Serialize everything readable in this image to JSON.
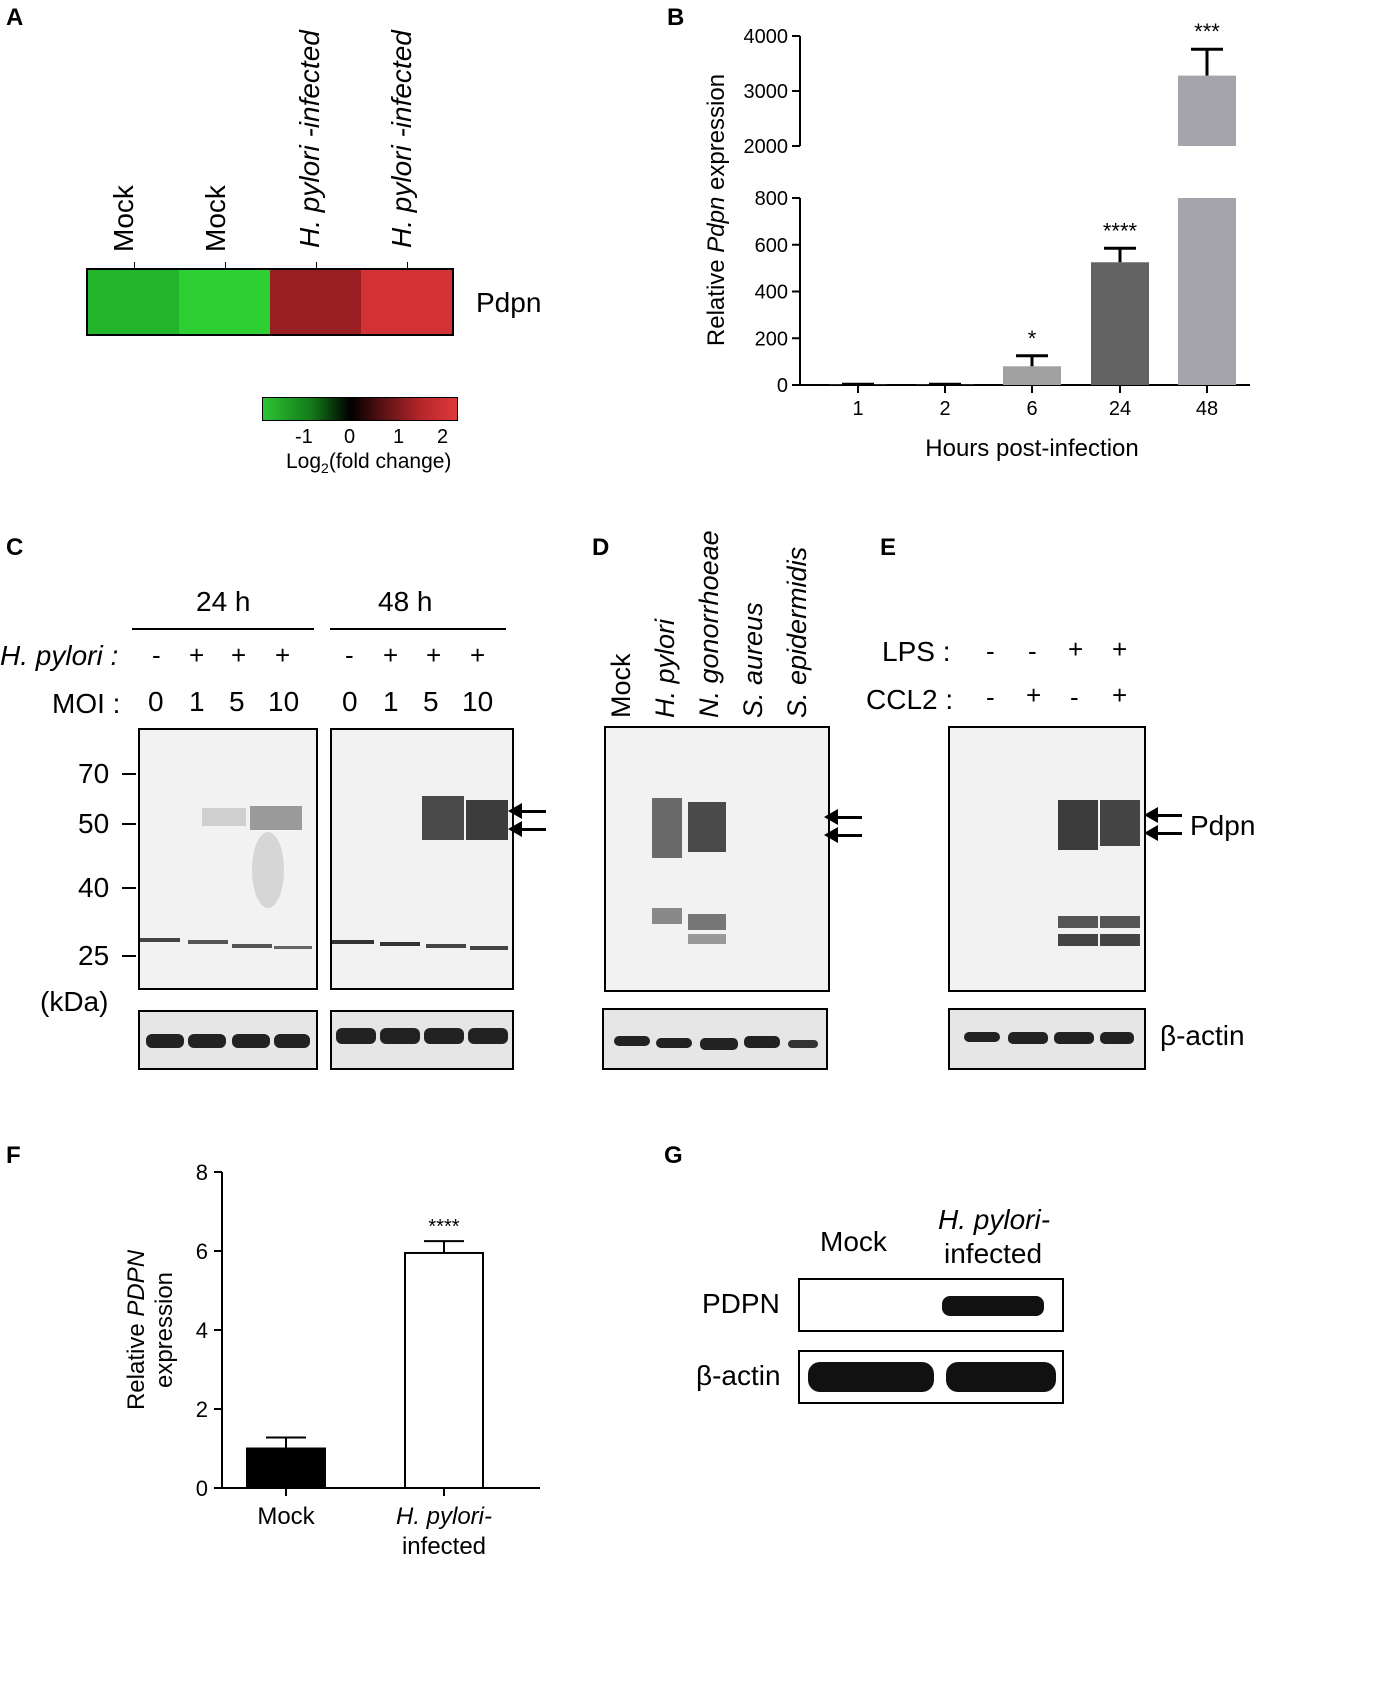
{
  "panels": {
    "A": {
      "label": "A",
      "columns": [
        "Mock",
        "Mock",
        "H. pylori -infected",
        "H. pylori -infected"
      ],
      "row_label": "Pdpn",
      "cell_colors": [
        "#22b52c",
        "#2ecf33",
        "#9a1f22",
        "#d33234"
      ],
      "colorbar_ticks": [
        "-1",
        "0",
        "1",
        "2"
      ],
      "colorbar_label": "Log2(fold change)",
      "colorbar_label_base": "Log",
      "colorbar_label_sub": "2",
      "colorbar_label_rest": "(fold change)"
    },
    "B": {
      "label": "B"
    },
    "C": {
      "label": "C",
      "time_labels": [
        "24 h",
        "48 h"
      ],
      "hpylori_label": "H. pylori :",
      "moi_label": "MOI :",
      "signs": [
        "-",
        "+",
        "+",
        "+"
      ],
      "moi_values": [
        "0",
        "1",
        "5",
        "10"
      ],
      "mw_markers": [
        "70",
        "50",
        "40",
        "25"
      ],
      "mw_unit": "(kDa)"
    },
    "D": {
      "label": "D",
      "lanes": [
        "Mock",
        "H. pylori",
        "N. gonorrhoeae",
        "S. aureus",
        "S. epidermidis"
      ]
    },
    "E": {
      "label": "E",
      "lps_label": "LPS :",
      "ccl2_label": "CCL2 :",
      "lps_signs": [
        "-",
        "-",
        "+",
        "+"
      ],
      "ccl2_signs": [
        "-",
        "+",
        "-",
        "+"
      ],
      "pdpn_label": "Pdpn",
      "actin_label": "β-actin"
    },
    "F": {
      "label": "F"
    },
    "G": {
      "label": "G",
      "mock_label": "Mock",
      "infected_label_1": "H. pylori-",
      "infected_label_2": "infected",
      "pdpn_label": "PDPN",
      "actin_label": "β-actin"
    }
  },
  "chart_data": [
    {
      "type": "bar",
      "panel": "B",
      "categories": [
        "1",
        "2",
        "6",
        "24",
        "48"
      ],
      "values": [
        1,
        1,
        80,
        525,
        3280
      ],
      "errors": [
        2,
        2,
        45,
        60,
        480
      ],
      "significance": [
        "",
        "",
        "*",
        "****",
        "***"
      ],
      "bar_colors": [
        "#a0a0a0",
        "#a0a0a0",
        "#a0a0a0",
        "#626262",
        "#a4a4aa"
      ],
      "xlabel": "Hours post-infection",
      "ylabel_prefix": "Relative ",
      "ylabel_italic": "Pdpn",
      "ylabel_suffix": " expression",
      "ylim_lower": [
        0,
        800
      ],
      "ylim_upper": [
        2000,
        4000
      ],
      "yticks_lower": [
        0,
        200,
        400,
        600,
        800
      ],
      "yticks_upper": [
        2000,
        3000,
        4000
      ],
      "axis_break": true
    },
    {
      "type": "bar",
      "panel": "F",
      "categories": [
        "Mock",
        "H. pylori- infected"
      ],
      "category_line1": [
        "Mock",
        "H. pylori-"
      ],
      "category_line2": [
        "",
        "infected"
      ],
      "values": [
        1.0,
        5.95
      ],
      "errors": [
        0.28,
        0.3
      ],
      "significance": [
        "",
        "****"
      ],
      "bar_fills": [
        "#000000",
        "#ffffff"
      ],
      "ylabel_prefix": "Relative ",
      "ylabel_italic": "PDPN",
      "ylabel_line2": "expression",
      "ylim": [
        0,
        8
      ],
      "yticks": [
        0,
        2,
        4,
        6,
        8
      ]
    }
  ]
}
